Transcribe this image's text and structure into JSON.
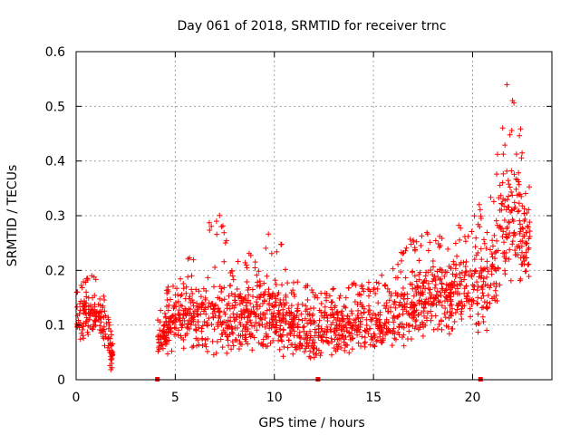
{
  "chart_data": {
    "type": "scatter",
    "title": "Day 061 of 2018, SRMTID for receiver trnc",
    "xlabel": "GPS time / hours",
    "ylabel": "SRMTID / TECUs",
    "xlim": [
      0,
      24
    ],
    "ylim": [
      0,
      0.6
    ],
    "xticks": [
      0,
      5,
      10,
      15,
      20
    ],
    "xtick_labels": [
      "0",
      "5",
      "10",
      "15",
      "20"
    ],
    "yticks": [
      0,
      0.1,
      0.2,
      0.3,
      0.4,
      0.5,
      0.6
    ],
    "ytick_labels": [
      "0",
      "0.1",
      "0.2",
      "0.3",
      "0.4",
      "0.5",
      "0.6"
    ],
    "grid": true,
    "marker": "plus",
    "color": "#ff0000",
    "zero_markers_x": [
      4.1,
      12.2,
      20.4
    ],
    "series": [
      {
        "name": "SRMTID",
        "note": "dense scatter; representative envelope per hour (x, typical low, typical high, occasional max)",
        "envelope": [
          {
            "x": 0.0,
            "lo": 0.06,
            "hi": 0.14,
            "max": 0.16
          },
          {
            "x": 0.5,
            "lo": 0.07,
            "hi": 0.17,
            "max": 0.19
          },
          {
            "x": 1.0,
            "lo": 0.08,
            "hi": 0.17,
            "max": 0.2
          },
          {
            "x": 1.5,
            "lo": 0.04,
            "hi": 0.13,
            "max": 0.14
          },
          {
            "x": 1.8,
            "lo": 0.0,
            "hi": 0.08,
            "max": 0.08
          },
          {
            "x": 4.1,
            "lo": 0.04,
            "hi": 0.1,
            "max": 0.12
          },
          {
            "x": 5.0,
            "lo": 0.05,
            "hi": 0.18,
            "max": 0.21
          },
          {
            "x": 6.0,
            "lo": 0.05,
            "hi": 0.19,
            "max": 0.23
          },
          {
            "x": 7.0,
            "lo": 0.03,
            "hi": 0.2,
            "max": 0.33
          },
          {
            "x": 8.0,
            "lo": 0.04,
            "hi": 0.18,
            "max": 0.23
          },
          {
            "x": 9.0,
            "lo": 0.05,
            "hi": 0.19,
            "max": 0.24
          },
          {
            "x": 10.0,
            "lo": 0.04,
            "hi": 0.2,
            "max": 0.29
          },
          {
            "x": 11.0,
            "lo": 0.04,
            "hi": 0.15,
            "max": 0.18
          },
          {
            "x": 12.0,
            "lo": 0.03,
            "hi": 0.15,
            "max": 0.18
          },
          {
            "x": 13.0,
            "lo": 0.04,
            "hi": 0.14,
            "max": 0.17
          },
          {
            "x": 14.0,
            "lo": 0.04,
            "hi": 0.15,
            "max": 0.18
          },
          {
            "x": 15.0,
            "lo": 0.05,
            "hi": 0.15,
            "max": 0.18
          },
          {
            "x": 16.0,
            "lo": 0.06,
            "hi": 0.17,
            "max": 0.21
          },
          {
            "x": 17.0,
            "lo": 0.06,
            "hi": 0.22,
            "max": 0.27
          },
          {
            "x": 18.0,
            "lo": 0.07,
            "hi": 0.23,
            "max": 0.27
          },
          {
            "x": 19.0,
            "lo": 0.08,
            "hi": 0.24,
            "max": 0.28
          },
          {
            "x": 20.0,
            "lo": 0.08,
            "hi": 0.25,
            "max": 0.29
          },
          {
            "x": 21.0,
            "lo": 0.08,
            "hi": 0.3,
            "max": 0.4
          },
          {
            "x": 21.8,
            "lo": 0.15,
            "hi": 0.45,
            "max": 0.57
          },
          {
            "x": 22.8,
            "lo": 0.17,
            "hi": 0.35,
            "max": 0.4
          }
        ]
      }
    ]
  }
}
